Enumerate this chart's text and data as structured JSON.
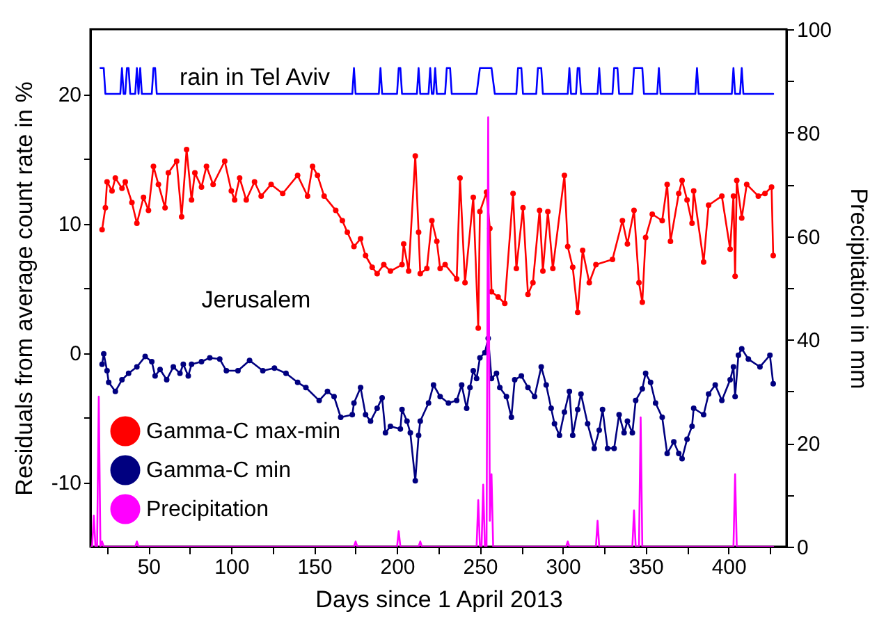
{
  "chart_data": {
    "type": "line",
    "xlabel": "Days since 1 April 2013",
    "ylabel": "Residuals from average count rate in %",
    "y2label": "Precipitation in mm",
    "xlim": [
      15,
      435
    ],
    "xticks": [
      {
        "value": 25,
        "label": null
      },
      50,
      {
        "value": 75,
        "label": null
      },
      100,
      {
        "value": 125,
        "label": null
      },
      150,
      {
        "value": 175,
        "label": null
      },
      200,
      {
        "value": 225,
        "label": null
      },
      250,
      {
        "value": 275,
        "label": null
      },
      300,
      {
        "value": 325,
        "label": null
      },
      350,
      {
        "value": 375,
        "label": null
      },
      400,
      {
        "value": 425,
        "label": null
      }
    ],
    "ylim": [
      -15,
      25
    ],
    "yticks": [
      -10,
      {
        "value": -5,
        "label": null
      },
      0,
      {
        "value": 5,
        "label": null
      },
      10,
      {
        "value": 15,
        "label": null
      },
      20
    ],
    "y2lim": [
      0,
      100
    ],
    "y2ticks": [
      0,
      {
        "value": 10,
        "label": null
      },
      20,
      {
        "value": 30,
        "label": null
      },
      40,
      {
        "value": 50,
        "label": null
      },
      60,
      {
        "value": 70,
        "label": null
      },
      80,
      {
        "value": 90,
        "label": null
      },
      100
    ],
    "legend": "bottom left",
    "marker": "circle",
    "annotations": [
      "rain in Tel Aviv",
      "Jerusalem"
    ],
    "series": [
      {
        "color": "#0000ff",
        "marker": "none",
        "x": [
          21,
          23,
          24,
          33,
          34,
          35,
          36,
          37,
          38,
          39,
          42,
          43,
          44,
          45,
          46,
          52,
          53,
          54,
          55,
          173,
          174,
          175,
          189,
          190,
          191,
          200,
          201,
          202,
          203,
          212,
          213,
          214,
          219,
          220,
          221,
          222,
          223,
          224,
          229,
          230,
          232,
          233,
          248,
          250,
          257,
          259,
          272,
          273,
          275,
          276,
          284,
          285,
          287,
          288,
          303,
          304,
          305,
          308,
          309,
          310,
          311,
          321,
          322,
          323,
          330,
          331,
          333,
          334,
          342,
          343,
          348,
          349,
          357,
          358,
          359,
          380,
          381,
          382,
          402,
          403,
          404,
          407,
          408,
          409,
          427
        ],
        "values": [
          22,
          22,
          20,
          20,
          22,
          20,
          20,
          22,
          22,
          20,
          20,
          22,
          20,
          22,
          20,
          20,
          22,
          22,
          20,
          20,
          22,
          20,
          20,
          22,
          20,
          20,
          22,
          22,
          20,
          20,
          22,
          20,
          20,
          22,
          20,
          20,
          22,
          20,
          20,
          22,
          22,
          20,
          20,
          22,
          22,
          20,
          20,
          22,
          22,
          20,
          20,
          22,
          22,
          20,
          20,
          22,
          20,
          20,
          22,
          22,
          20,
          20,
          22,
          20,
          20,
          22,
          22,
          20,
          20,
          22,
          22,
          20,
          20,
          22,
          20,
          20,
          22,
          20,
          20,
          22,
          20,
          20,
          22,
          20,
          20
        ]
      },
      {
        "name": "Gamma-C max-min",
        "color": "#ff0000",
        "x": [
          22,
          24,
          25,
          28,
          30,
          34,
          36,
          40,
          43,
          47,
          50,
          53,
          56,
          60,
          62,
          67,
          70,
          73,
          76,
          78,
          82,
          85,
          89,
          96,
          100,
          102,
          105,
          109,
          114,
          118,
          124,
          131,
          140,
          146,
          149,
          152,
          156,
          163,
          167,
          170,
          174,
          178,
          181,
          185,
          188,
          192,
          196,
          203,
          204,
          207,
          211,
          213,
          214,
          218,
          221,
          224,
          226,
          229,
          236,
          238,
          241,
          246,
          249,
          250,
          254,
          256,
          257,
          261,
          265,
          270,
          272,
          276,
          279,
          282,
          286,
          288,
          291,
          294,
          301,
          303,
          306,
          309,
          312,
          316,
          320,
          330,
          336,
          339,
          343,
          346,
          348,
          350,
          354,
          360,
          363,
          365,
          370,
          372,
          375,
          378,
          379,
          385,
          388,
          396,
          401,
          403,
          404,
          405,
          408,
          411,
          418,
          422,
          426,
          427
        ],
        "values": [
          9.5,
          11.2,
          13.2,
          12.5,
          13.5,
          12.7,
          13.2,
          11.6,
          10,
          12,
          11,
          14.4,
          13,
          11.2,
          13.9,
          14.8,
          10.5,
          15.7,
          11.8,
          13.9,
          12.8,
          14.4,
          13,
          14.8,
          12.5,
          11.8,
          13.5,
          11.8,
          13.2,
          12.1,
          13,
          12.3,
          13.7,
          12.1,
          14.4,
          13.7,
          12.1,
          11,
          10.2,
          9.3,
          8.2,
          8.8,
          7.5,
          6.6,
          6.1,
          6.8,
          6.3,
          6.8,
          8.4,
          6.3,
          15.2,
          9.3,
          6.1,
          6.5,
          10.2,
          8.6,
          6.5,
          6.8,
          5.7,
          13.5,
          5.4,
          12,
          1.9,
          10.9,
          12.4,
          9.6,
          4.7,
          4.3,
          3.8,
          12.3,
          6.5,
          11.2,
          4.5,
          5.4,
          11,
          6.3,
          10.9,
          6.5,
          13.7,
          8.2,
          6.6,
          3.1,
          7.9,
          5.4,
          6.8,
          7.2,
          10.2,
          8.4,
          11,
          5.4,
          3.9,
          8.9,
          10.7,
          10.2,
          13,
          8.6,
          12.3,
          13.3,
          11.8,
          10,
          12.5,
          7,
          11.4,
          12.1,
          8,
          12.1,
          5.9,
          13.3,
          10.4,
          13,
          12.1,
          12.3,
          12.8,
          7.5
        ]
      },
      {
        "name": "Gamma-C min",
        "color": "#000080",
        "x": [
          22,
          23,
          25,
          26,
          30,
          34,
          38,
          43,
          48,
          52,
          54,
          57,
          61,
          65,
          69,
          71,
          74,
          76,
          82,
          87,
          93,
          97,
          104,
          111,
          119,
          126,
          133,
          140,
          145,
          153,
          158,
          162,
          166,
          173,
          174,
          178,
          181,
          184,
          188,
          191,
          193,
          196,
          202,
          203,
          206,
          208,
          211,
          213,
          214,
          219,
          222,
          226,
          231,
          236,
          239,
          242,
          244,
          246,
          248,
          250,
          253,
          255,
          257,
          260,
          262,
          266,
          269,
          271,
          275,
          279,
          283,
          287,
          290,
          293,
          295,
          298,
          301,
          304,
          306,
          309,
          311,
          315,
          319,
          322,
          324,
          327,
          331,
          334,
          337,
          339,
          342,
          344,
          348,
          350,
          353,
          356,
          360,
          363,
          367,
          370,
          372,
          375,
          378,
          379,
          385,
          388,
          392,
          396,
          401,
          403,
          404,
          406,
          408,
          412,
          419,
          425,
          427
        ],
        "values": [
          -0.9,
          -0.1,
          -1.4,
          -2.3,
          -3,
          -2.1,
          -1.6,
          -1.1,
          -0.3,
          -0.7,
          -1.8,
          -1.3,
          -2.1,
          -1.1,
          -1.6,
          -0.9,
          -1.8,
          -0.9,
          -0.7,
          -0.4,
          -0.5,
          -1.4,
          -1.4,
          -0.6,
          -1.4,
          -1.2,
          -1.6,
          -2.3,
          -2.7,
          -3.7,
          -3,
          -3.4,
          -5,
          -4.8,
          -3.9,
          -2.7,
          -4.8,
          -5.3,
          -4.3,
          -3.5,
          -6.2,
          -5.7,
          -5.9,
          -4.4,
          -5.3,
          -6.2,
          -9.9,
          -6.4,
          -5.3,
          -3.9,
          -2.5,
          -3.4,
          -3.9,
          -3.7,
          -2.5,
          -4.3,
          -2.7,
          -1.4,
          -2,
          -0.4,
          0,
          1.1,
          -2,
          -1.6,
          -2.7,
          -3.4,
          -5,
          -2.1,
          -1.8,
          -2.7,
          -3.4,
          -1.1,
          -2.5,
          -4.3,
          -5.5,
          -6.4,
          -4.6,
          -3,
          -6.4,
          -4.4,
          -3.2,
          -5.5,
          -7.4,
          -6,
          -4.4,
          -7.4,
          -7.4,
          -4.8,
          -6.2,
          -5.3,
          -6.2,
          -3.7,
          -2.8,
          -1.6,
          -2.3,
          -3.9,
          -5,
          -7.8,
          -6.9,
          -7.8,
          -8.2,
          -6.7,
          -5.7,
          -4.3,
          -4.8,
          -3.2,
          -2.5,
          -3.7,
          -2.1,
          -1.1,
          -3.4,
          -0.2,
          0.3,
          -0.5,
          -1.1,
          -0.2,
          -2.4
        ]
      },
      {
        "name": "Precipitation",
        "color": "#ff00ff",
        "axis": "y2",
        "marker": "none",
        "x": [
          15,
          16,
          17,
          18,
          19,
          20,
          21,
          22,
          23,
          42,
          43,
          44,
          174,
          175,
          176,
          200,
          201,
          202,
          213,
          214,
          215,
          248,
          249,
          250,
          251,
          252,
          253,
          254,
          255,
          256,
          257,
          258,
          302,
          303,
          304,
          320,
          321,
          322,
          342,
          343,
          344,
          346,
          347,
          348,
          349,
          403,
          404,
          405,
          427
        ],
        "values": [
          0,
          0,
          6,
          0,
          0,
          29,
          0,
          1,
          0,
          0,
          1,
          0,
          0,
          1,
          0,
          0,
          3,
          0,
          0,
          1,
          0,
          0,
          9,
          0,
          0,
          12,
          0,
          0,
          83,
          5,
          14,
          0,
          0,
          1,
          0,
          0,
          5,
          0,
          0,
          7,
          0,
          0,
          25,
          0,
          0,
          0,
          14,
          0,
          0
        ]
      }
    ]
  }
}
